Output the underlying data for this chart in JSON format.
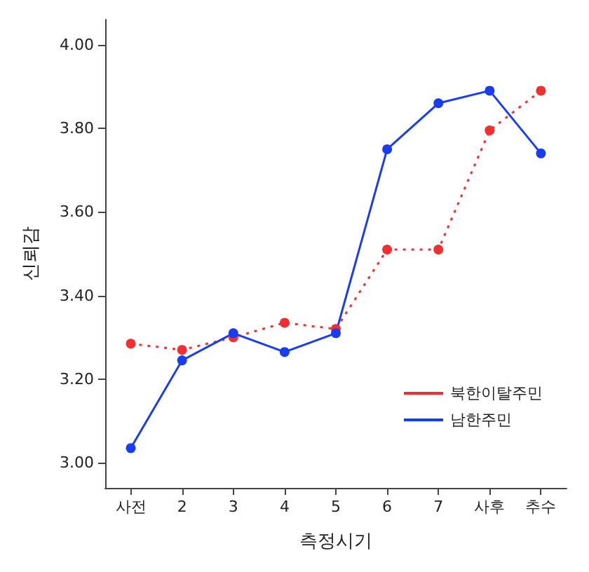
{
  "chart_data": {
    "type": "line",
    "xlabel": "측정시기",
    "ylabel": "신뢰감",
    "categories": [
      "사전",
      "2",
      "3",
      "4",
      "5",
      "6",
      "7",
      "사후",
      "추수"
    ],
    "series": [
      {
        "name": "북한이탈주민",
        "color": "#f03030",
        "line_style": "dotted",
        "values": [
          3.285,
          3.27,
          3.3,
          3.335,
          3.32,
          3.51,
          3.51,
          3.795,
          3.89
        ]
      },
      {
        "name": "남한주민",
        "color": "#1a3cf0",
        "line_style": "solid",
        "values": [
          3.035,
          3.245,
          3.31,
          3.265,
          3.31,
          3.75,
          3.86,
          3.89,
          3.74
        ]
      }
    ],
    "ylim": [
      2.94,
      4.06
    ],
    "yticks": [
      {
        "value": 3.0,
        "label": "3.00"
      },
      {
        "value": 3.2,
        "label": "3.20"
      },
      {
        "value": 3.4,
        "label": "3.40"
      },
      {
        "value": 3.6,
        "label": "3.60"
      },
      {
        "value": 3.8,
        "label": "3.80"
      },
      {
        "value": 4.0,
        "label": "4.00"
      }
    ],
    "marker": "circle",
    "grid": false,
    "legend": "bottom right"
  }
}
